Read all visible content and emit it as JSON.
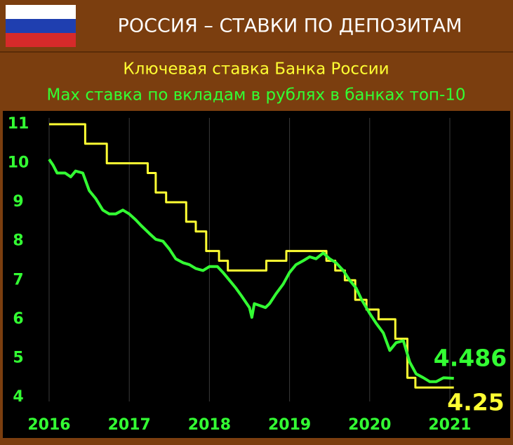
{
  "chart_data": {
    "type": "line",
    "title": "РОССИЯ – СТАВКИ ПО ДЕПОЗИТАМ",
    "series": [
      {
        "name": "Ключевая ставка Банка России",
        "color": "#ffff33",
        "x": [
          2016.0,
          2016.45,
          2016.45,
          2016.72,
          2016.72,
          2017.23,
          2017.23,
          2017.33,
          2017.33,
          2017.46,
          2017.46,
          2017.71,
          2017.71,
          2017.83,
          2017.83,
          2017.96,
          2017.96,
          2018.12,
          2018.12,
          2018.23,
          2018.23,
          2018.71,
          2018.71,
          2018.96,
          2018.96,
          2019.46,
          2019.46,
          2019.57,
          2019.57,
          2019.69,
          2019.69,
          2019.82,
          2019.82,
          2019.96,
          2019.96,
          2020.11,
          2020.11,
          2020.32,
          2020.32,
          2020.47,
          2020.47,
          2020.57,
          2020.57,
          2021.05
        ],
        "values": [
          11,
          11,
          10.5,
          10.5,
          10,
          10,
          9.75,
          9.75,
          9.25,
          9.25,
          9,
          9,
          8.5,
          8.5,
          8.25,
          8.25,
          7.75,
          7.75,
          7.5,
          7.5,
          7.25,
          7.25,
          7.5,
          7.5,
          7.75,
          7.75,
          7.5,
          7.5,
          7.25,
          7.25,
          7,
          7,
          6.5,
          6.5,
          6.25,
          6.25,
          6,
          6,
          5.5,
          5.5,
          4.5,
          4.5,
          4.25,
          4.25
        ]
      },
      {
        "name": "Max ставка по вкладам в рублях в банках топ-10",
        "color": "#33ff33",
        "x": [
          2016.0,
          2016.05,
          2016.1,
          2016.2,
          2016.27,
          2016.33,
          2016.42,
          2016.5,
          2016.58,
          2016.67,
          2016.75,
          2016.83,
          2016.92,
          2017.0,
          2017.08,
          2017.15,
          2017.25,
          2017.33,
          2017.42,
          2017.5,
          2017.58,
          2017.67,
          2017.75,
          2017.83,
          2017.92,
          2018.0,
          2018.1,
          2018.17,
          2018.25,
          2018.33,
          2018.4,
          2018.45,
          2018.5,
          2018.53,
          2018.56,
          2018.63,
          2018.7,
          2018.75,
          2018.83,
          2018.92,
          2019.0,
          2019.08,
          2019.17,
          2019.25,
          2019.33,
          2019.42,
          2019.5,
          2019.58,
          2019.67,
          2019.75,
          2019.83,
          2019.9,
          2020.0,
          2020.08,
          2020.17,
          2020.25,
          2020.33,
          2020.42,
          2020.5,
          2020.58,
          2020.67,
          2020.75,
          2020.83,
          2020.92,
          2021.05
        ],
        "values": [
          10.1,
          9.95,
          9.75,
          9.75,
          9.65,
          9.8,
          9.75,
          9.3,
          9.1,
          8.8,
          8.7,
          8.7,
          8.8,
          8.7,
          8.55,
          8.4,
          8.2,
          8.05,
          8.0,
          7.8,
          7.55,
          7.45,
          7.4,
          7.3,
          7.25,
          7.35,
          7.35,
          7.2,
          7.0,
          6.8,
          6.6,
          6.45,
          6.3,
          6.05,
          6.4,
          6.35,
          6.3,
          6.4,
          6.65,
          6.9,
          7.2,
          7.4,
          7.5,
          7.6,
          7.55,
          7.7,
          7.55,
          7.45,
          7.25,
          7.0,
          6.8,
          6.5,
          6.15,
          5.9,
          5.65,
          5.2,
          5.4,
          5.45,
          4.9,
          4.6,
          4.5,
          4.4,
          4.4,
          4.5,
          4.486
        ]
      }
    ],
    "xlim": [
      2016,
      2021.05
    ],
    "xticks": [
      2016,
      2017,
      2018,
      2019,
      2020,
      2021
    ],
    "ylim": [
      4,
      11
    ],
    "yticks": [
      4,
      5,
      6,
      7,
      8,
      9,
      10,
      11
    ],
    "grid": true
  }
}
